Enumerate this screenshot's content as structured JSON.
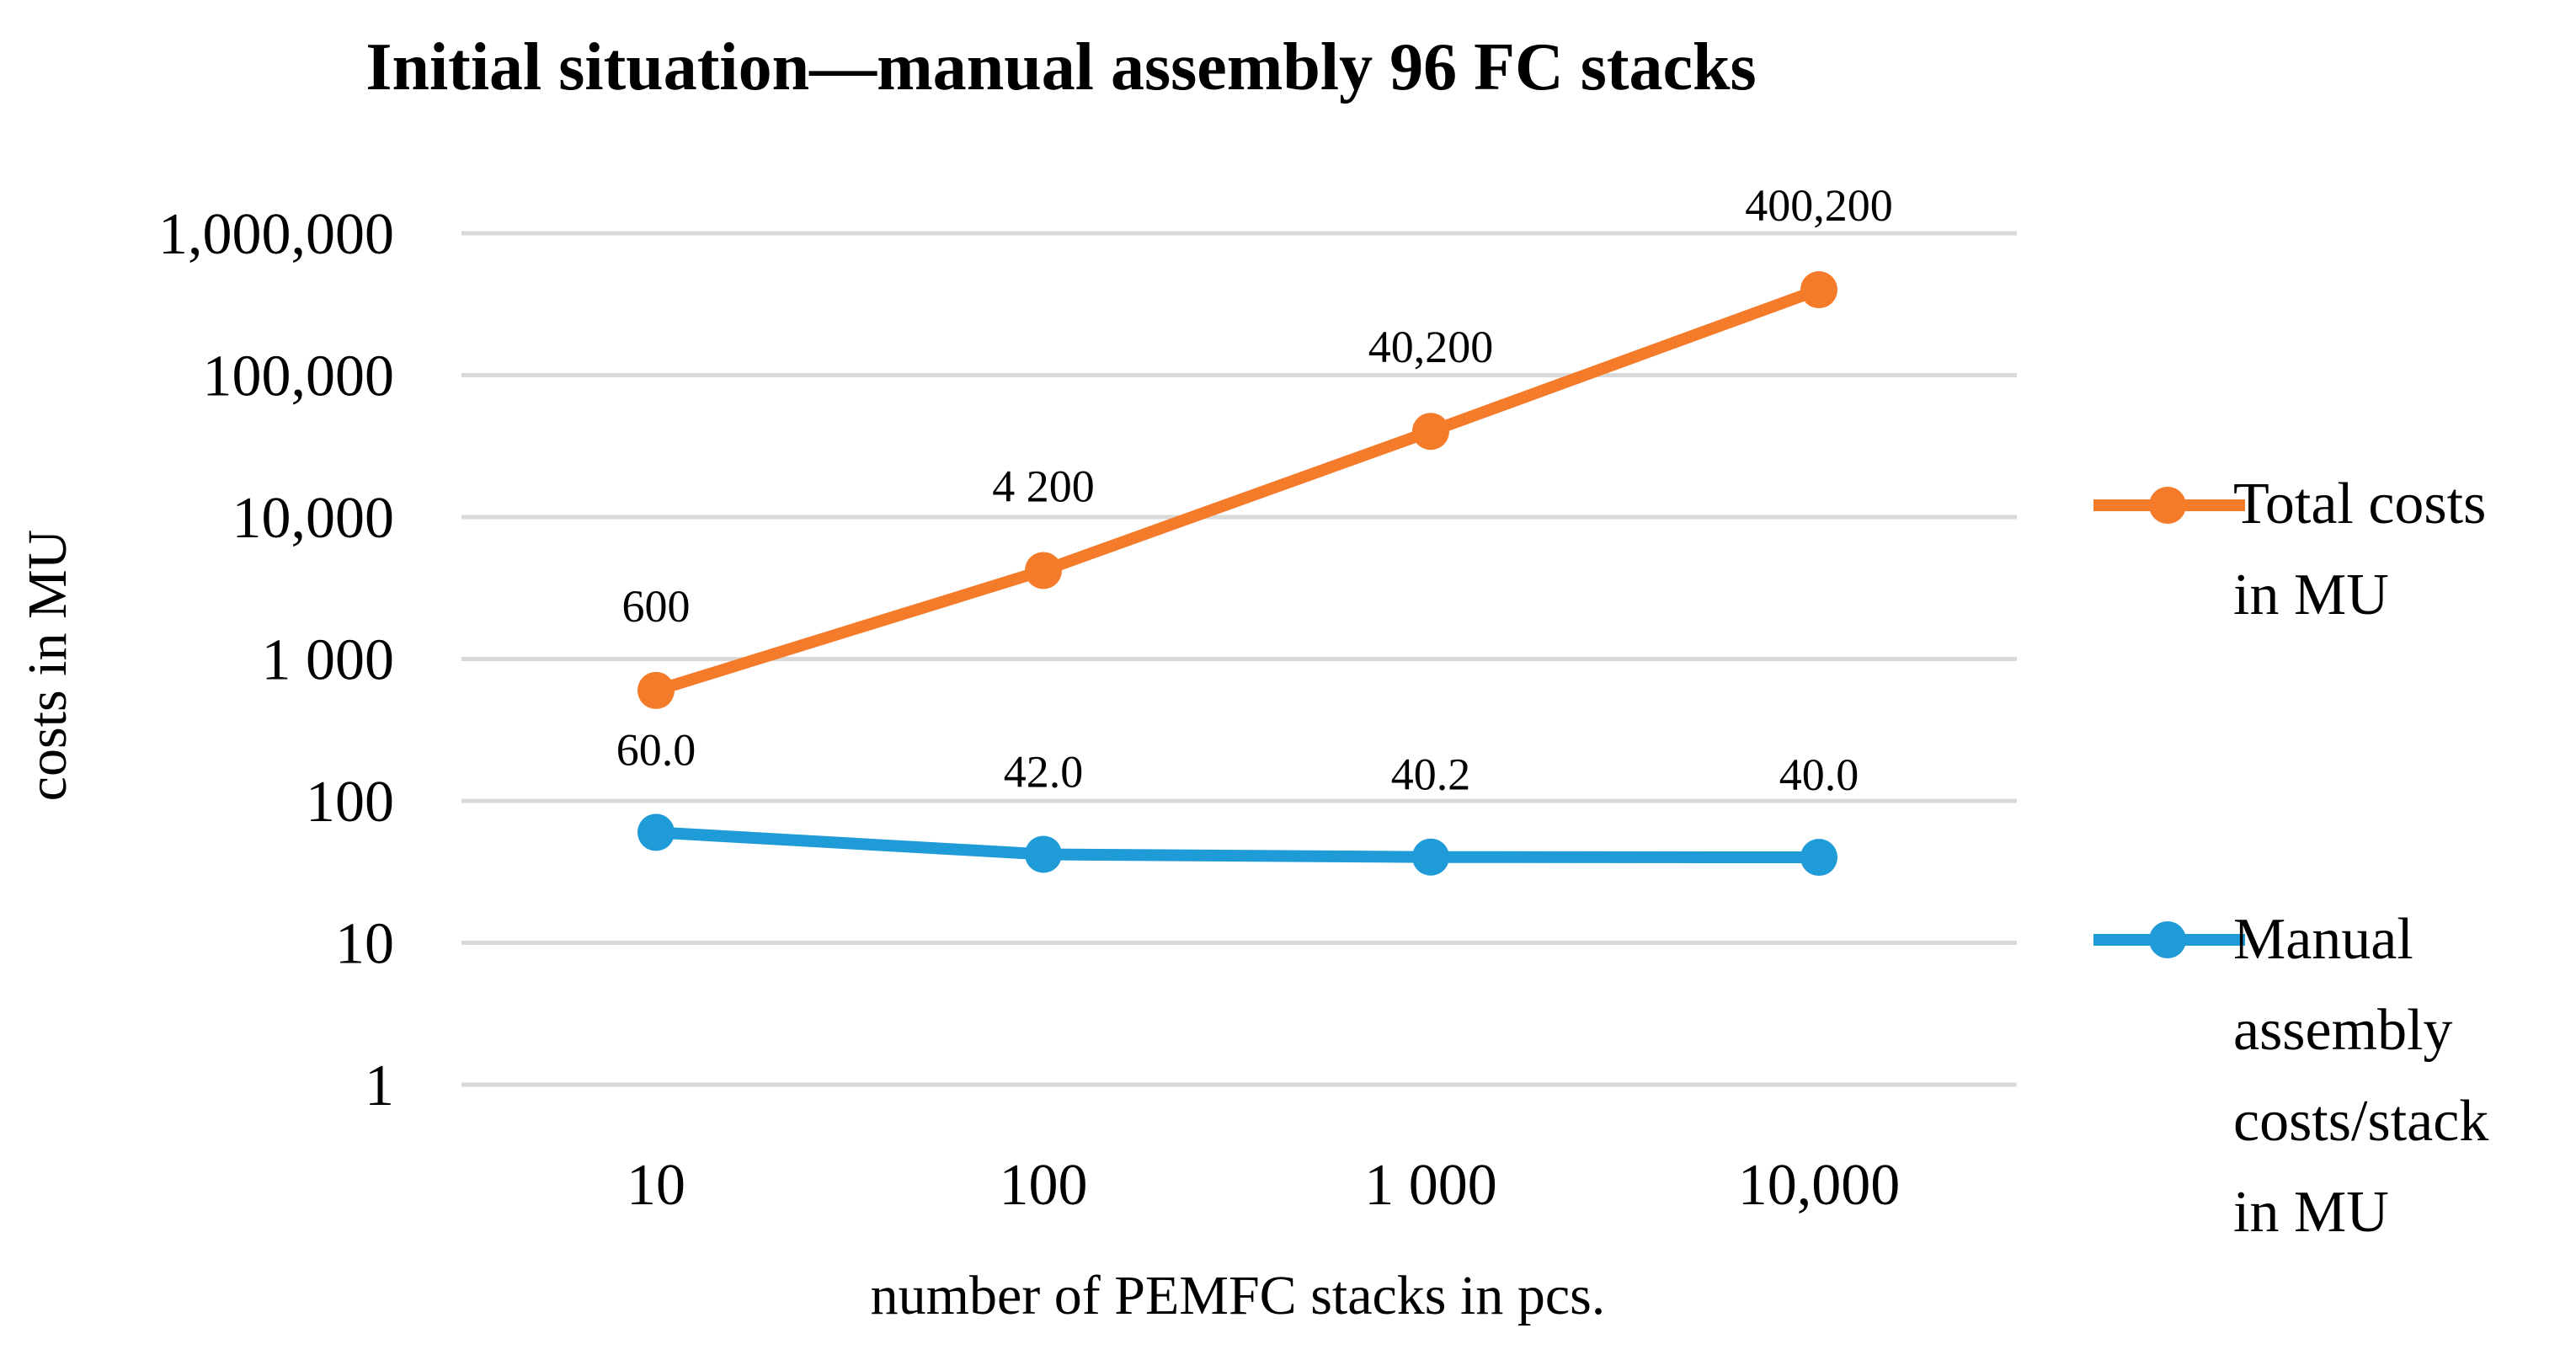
{
  "chart_data": {
    "type": "line",
    "title": "Initial situation—manual assembly 96 FC stacks",
    "xlabel": "number of PEMFC stacks in pcs.",
    "ylabel": "costs in MU",
    "y_scale": "log",
    "ylim": [
      1,
      1000000
    ],
    "x_scale": "log",
    "categories": [
      "10",
      "100",
      "1 000",
      "10,000"
    ],
    "x_values": [
      10,
      100,
      1000,
      10000
    ],
    "y_tick_values": [
      1,
      10,
      100,
      1000,
      10000,
      100000,
      1000000
    ],
    "y_tick_labels": [
      "1",
      "10",
      "100",
      "1 000",
      "10,000",
      "100,000",
      "1,000,000"
    ],
    "grid": true,
    "legend_position": "right",
    "series": [
      {
        "name": "Total costs in MU",
        "color": "#F47B2A",
        "values": [
          600,
          4200,
          40200,
          400200
        ],
        "data_labels": [
          "600",
          "4 200",
          "40,200",
          "400,200"
        ]
      },
      {
        "name": "Manual assembly costs/stack in MU",
        "color": "#1F9BD7",
        "values": [
          60.0,
          42.0,
          40.2,
          40.0
        ],
        "data_labels": [
          "60.0",
          "42.0",
          "40.2",
          "40.0"
        ]
      }
    ]
  },
  "legend": {
    "items": [
      {
        "lines": [
          "Total costs",
          "in MU"
        ]
      },
      {
        "lines": [
          "Manual",
          "assembly",
          "costs/stack",
          "in MU"
        ]
      }
    ]
  }
}
